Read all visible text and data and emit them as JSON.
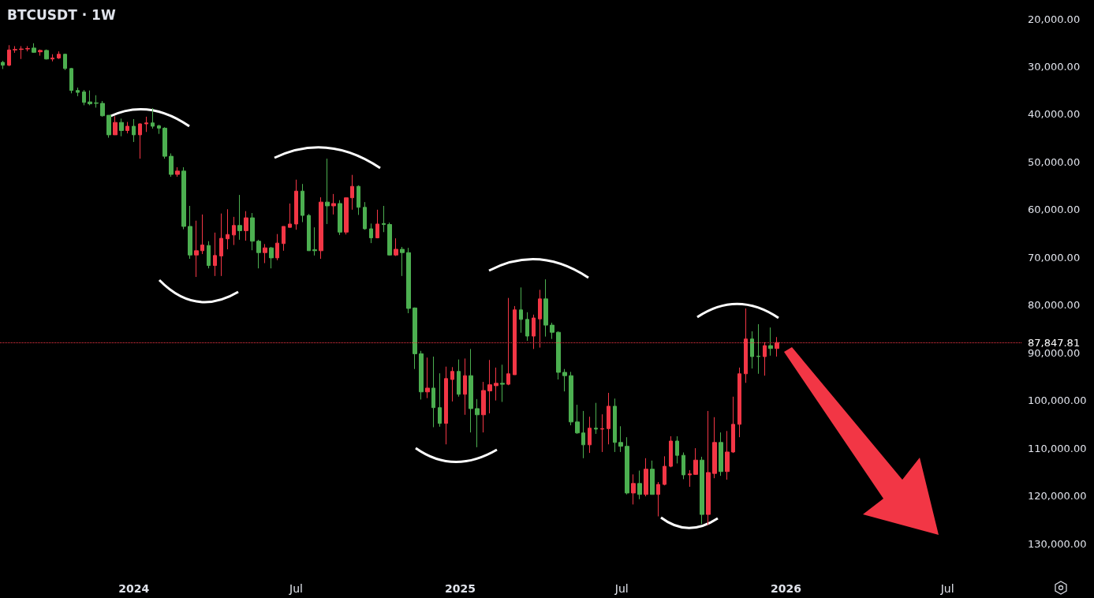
{
  "chart_data": {
    "type": "candlestick",
    "title": "BTCUSDT · 1W",
    "x": [
      "2023-08-07",
      "2023-08-14",
      "2023-08-21",
      "2023-08-28",
      "2023-09-04",
      "2023-09-11",
      "2023-09-18",
      "2023-09-25",
      "2023-10-02",
      "2023-10-09",
      "2023-10-16",
      "2023-10-23",
      "2023-10-30",
      "2023-11-06",
      "2023-11-13",
      "2023-11-20",
      "2023-11-27",
      "2023-12-04",
      "2023-12-11",
      "2023-12-18",
      "2023-12-25",
      "2024-01-01",
      "2024-01-08",
      "2024-01-15",
      "2024-01-22",
      "2024-01-29",
      "2024-02-05",
      "2024-02-12",
      "2024-02-19",
      "2024-02-26",
      "2024-03-04",
      "2024-03-11",
      "2024-03-18",
      "2024-03-25",
      "2024-04-01",
      "2024-04-08",
      "2024-04-15",
      "2024-04-22",
      "2024-04-29",
      "2024-05-06",
      "2024-05-13",
      "2024-05-20",
      "2024-05-27",
      "2024-06-03",
      "2024-06-10",
      "2024-06-17",
      "2024-06-24",
      "2024-07-01",
      "2024-07-08",
      "2024-07-15",
      "2024-07-22",
      "2024-07-29",
      "2024-08-05",
      "2024-08-12",
      "2024-08-19",
      "2024-08-26",
      "2024-09-02",
      "2024-09-09",
      "2024-09-16",
      "2024-09-23",
      "2024-09-30",
      "2024-10-07",
      "2024-10-14",
      "2024-10-21",
      "2024-10-28",
      "2024-11-04",
      "2024-11-11",
      "2024-11-18",
      "2024-11-25",
      "2024-12-02",
      "2024-12-09",
      "2024-12-16",
      "2024-12-23",
      "2024-12-30",
      "2025-01-06",
      "2025-01-13",
      "2025-01-20",
      "2025-01-27",
      "2025-02-03",
      "2025-02-10",
      "2025-02-17",
      "2025-02-24",
      "2025-03-03",
      "2025-03-10",
      "2025-03-17",
      "2025-03-24",
      "2025-03-31",
      "2025-04-07",
      "2025-04-14",
      "2025-04-21",
      "2025-04-28",
      "2025-05-05",
      "2025-05-12",
      "2025-05-19",
      "2025-05-26",
      "2025-06-02",
      "2025-06-09",
      "2025-06-16",
      "2025-06-23",
      "2025-06-30",
      "2025-07-07",
      "2025-07-14",
      "2025-07-21",
      "2025-07-28",
      "2025-08-04",
      "2025-08-11",
      "2025-08-18",
      "2025-08-25",
      "2025-09-01",
      "2025-09-08",
      "2025-09-15",
      "2025-09-22",
      "2025-09-29",
      "2025-10-06",
      "2025-10-13",
      "2025-10-20",
      "2025-10-27",
      "2025-11-03",
      "2025-11-10",
      "2025-11-17",
      "2025-11-24",
      "2025-12-01",
      "2025-12-08",
      "2025-12-15",
      "2025-12-22"
    ],
    "ohlc": [
      [
        29100,
        30500,
        28800,
        29700
      ],
      [
        29700,
        29900,
        25500,
        26500
      ],
      [
        26500,
        27100,
        25700,
        26400
      ],
      [
        26400,
        28400,
        25700,
        26300
      ],
      [
        26300,
        26800,
        25700,
        26200
      ],
      [
        26100,
        27100,
        25100,
        27000
      ],
      [
        26900,
        27700,
        26400,
        26600
      ],
      [
        26600,
        28500,
        26400,
        28400
      ],
      [
        28400,
        28900,
        27400,
        28200
      ],
      [
        28200,
        28400,
        26800,
        27400
      ],
      [
        27400,
        30700,
        27300,
        30400
      ],
      [
        30400,
        35600,
        30300,
        35000
      ],
      [
        35000,
        36200,
        34400,
        35400
      ],
      [
        35300,
        38100,
        34900,
        37500
      ],
      [
        37400,
        38100,
        35000,
        37800
      ],
      [
        37600,
        38600,
        36000,
        37700
      ],
      [
        37700,
        40500,
        37200,
        40300
      ],
      [
        40200,
        44900,
        40200,
        44300
      ],
      [
        44300,
        44300,
        40400,
        41700
      ],
      [
        41700,
        44600,
        40900,
        43400
      ],
      [
        43400,
        44000,
        41600,
        42500
      ],
      [
        42500,
        45800,
        41000,
        44300
      ],
      [
        44300,
        49300,
        41900,
        42000
      ],
      [
        42000,
        43700,
        40500,
        41800
      ],
      [
        41800,
        43000,
        38700,
        42500
      ],
      [
        42400,
        44100,
        42200,
        42900
      ],
      [
        42900,
        49300,
        42700,
        48800
      ],
      [
        48800,
        53100,
        48200,
        52600
      ],
      [
        52600,
        53100,
        51100,
        51900
      ],
      [
        51900,
        64100,
        51100,
        63500
      ],
      [
        63500,
        70300,
        59200,
        69500
      ],
      [
        69500,
        74100,
        62300,
        68600
      ],
      [
        68600,
        69300,
        61000,
        67400
      ],
      [
        67500,
        72300,
        66600,
        71700
      ],
      [
        71700,
        73900,
        64800,
        69600
      ],
      [
        69700,
        73900,
        60800,
        66000
      ],
      [
        66100,
        68300,
        59900,
        65200
      ],
      [
        65300,
        67400,
        61500,
        63300
      ],
      [
        63300,
        66300,
        56900,
        64400
      ],
      [
        64400,
        66500,
        60300,
        61700
      ],
      [
        61700,
        68500,
        60700,
        66600
      ],
      [
        66600,
        72300,
        66300,
        69000
      ],
      [
        69000,
        71200,
        67200,
        68000
      ],
      [
        68000,
        72300,
        67800,
        70100
      ],
      [
        70100,
        70600,
        65100,
        67000
      ],
      [
        67100,
        68600,
        63500,
        63500
      ],
      [
        63700,
        63700,
        58700,
        63000
      ],
      [
        63000,
        64200,
        53700,
        56100
      ],
      [
        56100,
        62600,
        54600,
        61200
      ],
      [
        61200,
        68600,
        60900,
        68600
      ],
      [
        68400,
        69600,
        63700,
        68600
      ],
      [
        68600,
        70300,
        57400,
        58400
      ],
      [
        58400,
        63000,
        49300,
        59200
      ],
      [
        59200,
        61000,
        56700,
        58700
      ],
      [
        58700,
        65300,
        58000,
        64700
      ],
      [
        64700,
        65200,
        57500,
        57500
      ],
      [
        57500,
        60000,
        52700,
        55100
      ],
      [
        55100,
        61100,
        54900,
        59500
      ],
      [
        59500,
        64200,
        58400,
        64000
      ],
      [
        64000,
        67000,
        62900,
        65900
      ],
      [
        65900,
        66000,
        60000,
        63000
      ],
      [
        62900,
        64700,
        59200,
        63100
      ],
      [
        63100,
        69600,
        62700,
        69500
      ],
      [
        69500,
        69700,
        66000,
        68300
      ],
      [
        68300,
        73900,
        67800,
        69000
      ],
      [
        69000,
        81700,
        68000,
        80700
      ],
      [
        80600,
        93400,
        80500,
        90200
      ],
      [
        90200,
        99800,
        89600,
        98200
      ],
      [
        98200,
        99500,
        91000,
        97400
      ],
      [
        97400,
        105600,
        90800,
        101500
      ],
      [
        101500,
        105500,
        94300,
        104800
      ],
      [
        104800,
        109200,
        92900,
        95400
      ],
      [
        95600,
        100200,
        93000,
        93900
      ],
      [
        93900,
        99200,
        91400,
        98700
      ],
      [
        98700,
        103000,
        91200,
        94800
      ],
      [
        94800,
        106700,
        89200,
        101700
      ],
      [
        101700,
        109800,
        99700,
        103000
      ],
      [
        103000,
        106700,
        96100,
        97900
      ],
      [
        98000,
        102700,
        91500,
        96700
      ],
      [
        96900,
        100000,
        93100,
        96400
      ],
      [
        96400,
        100300,
        92500,
        96600
      ],
      [
        96600,
        96800,
        78500,
        94400
      ],
      [
        94600,
        94600,
        80200,
        81000
      ],
      [
        81000,
        85800,
        76300,
        83000
      ],
      [
        83000,
        87500,
        81500,
        86500
      ],
      [
        86500,
        89200,
        82000,
        82700
      ],
      [
        82900,
        88900,
        76800,
        78700
      ],
      [
        78700,
        86600,
        74600,
        84200
      ],
      [
        84200,
        87100,
        83700,
        85700
      ],
      [
        85700,
        95600,
        85500,
        94100
      ],
      [
        94100,
        98100,
        93400,
        94800
      ],
      [
        94800,
        105200,
        94000,
        104500
      ],
      [
        104500,
        107000,
        100900,
        106800
      ],
      [
        106800,
        112100,
        102200,
        109300
      ],
      [
        109300,
        111000,
        103400,
        105800
      ],
      [
        105800,
        107000,
        100500,
        106000
      ],
      [
        106000,
        110800,
        102900,
        105900
      ],
      [
        105900,
        109200,
        98400,
        101200
      ],
      [
        101200,
        110800,
        99600,
        108800
      ],
      [
        108800,
        110800,
        105400,
        109600
      ],
      [
        109600,
        119700,
        107700,
        119400
      ],
      [
        119400,
        121800,
        115500,
        117400
      ],
      [
        117400,
        120700,
        114700,
        119700
      ],
      [
        119700,
        120100,
        112100,
        114400
      ],
      [
        114400,
        119700,
        112600,
        119700
      ],
      [
        119700,
        124300,
        117100,
        117600
      ],
      [
        117600,
        117800,
        111700,
        113800
      ],
      [
        113800,
        114000,
        107500,
        108500
      ],
      [
        108500,
        113200,
        107500,
        111500
      ],
      [
        111500,
        116500,
        110900,
        115600
      ],
      [
        115600,
        118100,
        114600,
        115400
      ],
      [
        115500,
        115600,
        110000,
        112500
      ],
      [
        112500,
        125900,
        111800,
        123900
      ],
      [
        123900,
        126100,
        102200,
        115100
      ],
      [
        115300,
        116300,
        103500,
        108800
      ],
      [
        108800,
        115800,
        106700,
        114900
      ],
      [
        114900,
        116600,
        106400,
        110800
      ],
      [
        110800,
        111000,
        99200,
        105000
      ],
      [
        105000,
        107700,
        93100,
        94400
      ],
      [
        94400,
        96300,
        80700,
        87100
      ],
      [
        87100,
        93300,
        85500,
        90800
      ],
      [
        90700,
        94400,
        84000,
        90800
      ],
      [
        90800,
        94800,
        87800,
        88500
      ],
      [
        88500,
        90600,
        84700,
        89100
      ],
      [
        89100,
        90800,
        86700,
        87847.81
      ]
    ],
    "colors": [
      "#4caf50",
      "#f23645",
      "#f23645",
      "#f23645",
      "#f23645",
      "#4caf50",
      "#f23645",
      "#4caf50",
      "#f23645",
      "#f23645",
      "#4caf50",
      "#4caf50",
      "#4caf50",
      "#4caf50",
      "#4caf50",
      "#4caf50",
      "#4caf50",
      "#4caf50",
      "#f23645",
      "#4caf50",
      "#f23645",
      "#4caf50",
      "#f23645",
      "#f23645",
      "#4caf50",
      "#4caf50",
      "#4caf50",
      "#4caf50",
      "#f23645",
      "#4caf50",
      "#4caf50",
      "#f23645",
      "#f23645",
      "#4caf50",
      "#f23645",
      "#f23645",
      "#f23645",
      "#f23645",
      "#4caf50",
      "#f23645",
      "#4caf50",
      "#4caf50",
      "#f23645",
      "#4caf50",
      "#f23645",
      "#f23645",
      "#f23645",
      "#f23645",
      "#4caf50",
      "#4caf50",
      "#4caf50",
      "#f23645",
      "#4caf50",
      "#f23645",
      "#4caf50",
      "#f23645",
      "#f23645",
      "#4caf50",
      "#4caf50",
      "#4caf50",
      "#f23645",
      "#4caf50",
      "#4caf50",
      "#f23645",
      "#4caf50",
      "#4caf50",
      "#4caf50",
      "#4caf50",
      "#f23645",
      "#4caf50",
      "#4caf50",
      "#f23645",
      "#f23645",
      "#4caf50",
      "#f23645",
      "#4caf50",
      "#4caf50",
      "#f23645",
      "#f23645",
      "#f23645",
      "#4caf50",
      "#f23645",
      "#f23645",
      "#4caf50",
      "#4caf50",
      "#f23645",
      "#f23645",
      "#4caf50",
      "#4caf50",
      "#4caf50",
      "#4caf50",
      "#4caf50",
      "#4caf50",
      "#4caf50",
      "#f23645",
      "#4caf50",
      "#f23645",
      "#f23645",
      "#4caf50",
      "#4caf50",
      "#4caf50",
      "#f23645",
      "#4caf50",
      "#f23645",
      "#4caf50",
      "#f23645",
      "#f23645",
      "#f23645",
      "#4caf50",
      "#4caf50",
      "#f23645",
      "#f23645",
      "#4caf50",
      "#f23645",
      "#f23645",
      "#4caf50",
      "#f23645",
      "#f23645",
      "#f23645",
      "#f23645",
      "#4caf50",
      "#4caf50",
      "#f23645",
      "#4caf50",
      "#f23645"
    ],
    "xlim": [
      "2023-08-04",
      "2026-09-22"
    ],
    "xticks": [
      {
        "value": "2024-01-01",
        "label": "2024"
      },
      {
        "value": "2024-07-01",
        "label": "Jul"
      },
      {
        "value": "2025-01-01",
        "label": "2025"
      },
      {
        "value": "2025-07-01",
        "label": "Jul"
      },
      {
        "value": "2026-01-01",
        "label": "2026"
      },
      {
        "value": "2026-07-01",
        "label": "Jul"
      }
    ],
    "ylim": [
      130000,
      20000
    ],
    "yticks": [
      {
        "value": 20000,
        "label": "20,000.00"
      },
      {
        "value": 30000,
        "label": "30,000.00"
      },
      {
        "value": 40000,
        "label": "40,000.00"
      },
      {
        "value": 50000,
        "label": "50,000.00"
      },
      {
        "value": 60000,
        "label": "60,000.00"
      },
      {
        "value": 70000,
        "label": "70,000.00"
      },
      {
        "value": 80000,
        "label": "80,000.00"
      },
      {
        "value": 90000,
        "label": "90,000.00"
      },
      {
        "value": 100000,
        "label": "100,000.00"
      },
      {
        "value": 110000,
        "label": "110,000.00"
      },
      {
        "value": 120000,
        "label": "120,000.00"
      },
      {
        "value": 130000,
        "label": "130,000.00"
      }
    ],
    "ref_lines": [
      {
        "axis": "y",
        "value": 87847.81,
        "label": "87,847.81",
        "color": "#f23645",
        "line_style": "dotted"
      }
    ]
  }
}
